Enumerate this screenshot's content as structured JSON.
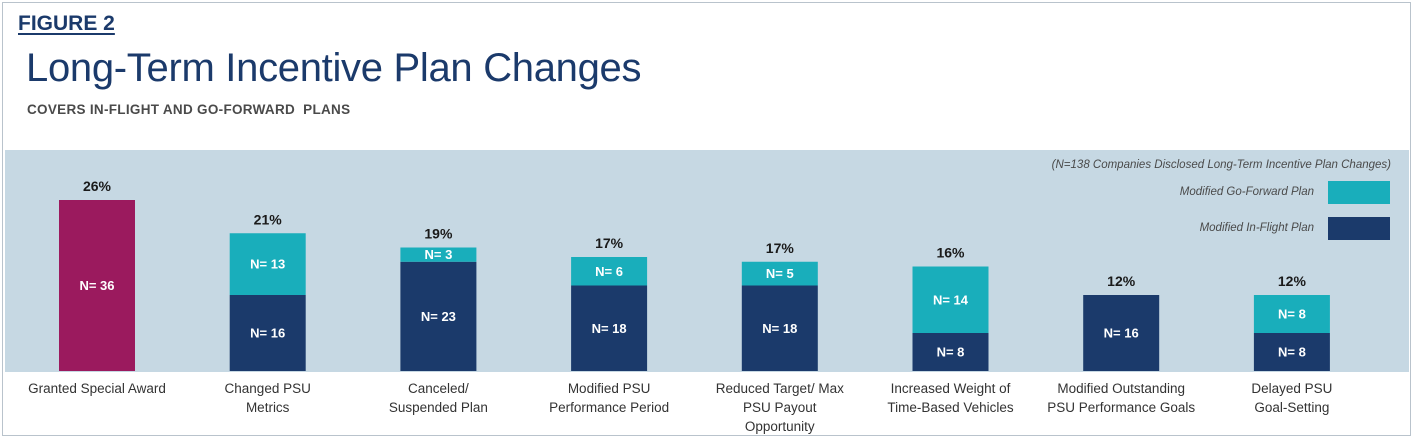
{
  "figure_label": "FIGURE 2",
  "title": "Long-Term Incentive Plan Changes",
  "subtitle": "COVERS IN-FLIGHT AND GO-FORWARD  PLANS",
  "note": "(N=138 Companies Disclosed Long-Term Incentive Plan Changes)",
  "colors": {
    "go_forward": "#19aebb",
    "in_flight": "#1b3a6b",
    "special": "#9b1a5e",
    "panel": "#c6d8e3"
  },
  "legend": [
    {
      "label": "Modified Go-Forward Plan",
      "color": "#19aebb"
    },
    {
      "label": "Modified In-Flight Plan",
      "color": "#1b3a6b"
    }
  ],
  "chart_data": {
    "type": "bar",
    "stacked": true,
    "categories": [
      "Granted Special Award",
      "Changed PSU\nMetrics",
      "Canceled/\nSuspended Plan",
      "Modified PSU\nPerformance Period",
      "Reduced Target/ Max\nPSU Payout\nOpportunity",
      "Increased Weight of\nTime-Based Vehicles",
      "Modified Outstanding\nPSU Performance Goals",
      "Delayed PSU\nGoal-Setting"
    ],
    "percent_labels": [
      "26%",
      "21%",
      "19%",
      "17%",
      "17%",
      "16%",
      "12%",
      "12%"
    ],
    "series": [
      {
        "name": "Modified In-Flight Plan",
        "values": [
          null,
          16,
          23,
          18,
          18,
          8,
          16,
          8
        ],
        "labels": [
          null,
          "N= 16",
          "N= 23",
          "N= 18",
          "N= 18",
          "N= 8",
          "N= 16",
          "N= 8"
        ]
      },
      {
        "name": "Modified Go-Forward Plan",
        "values": [
          null,
          13,
          3,
          6,
          5,
          14,
          null,
          8
        ],
        "labels": [
          null,
          "N= 13",
          "N= 3",
          "N= 6",
          "N= 5",
          "N= 14",
          null,
          "N= 8"
        ]
      }
    ],
    "special": {
      "index": 0,
      "value": 36,
      "label": "N= 36"
    },
    "total_n": 138,
    "grid": false,
    "legend_position": "top-right"
  }
}
